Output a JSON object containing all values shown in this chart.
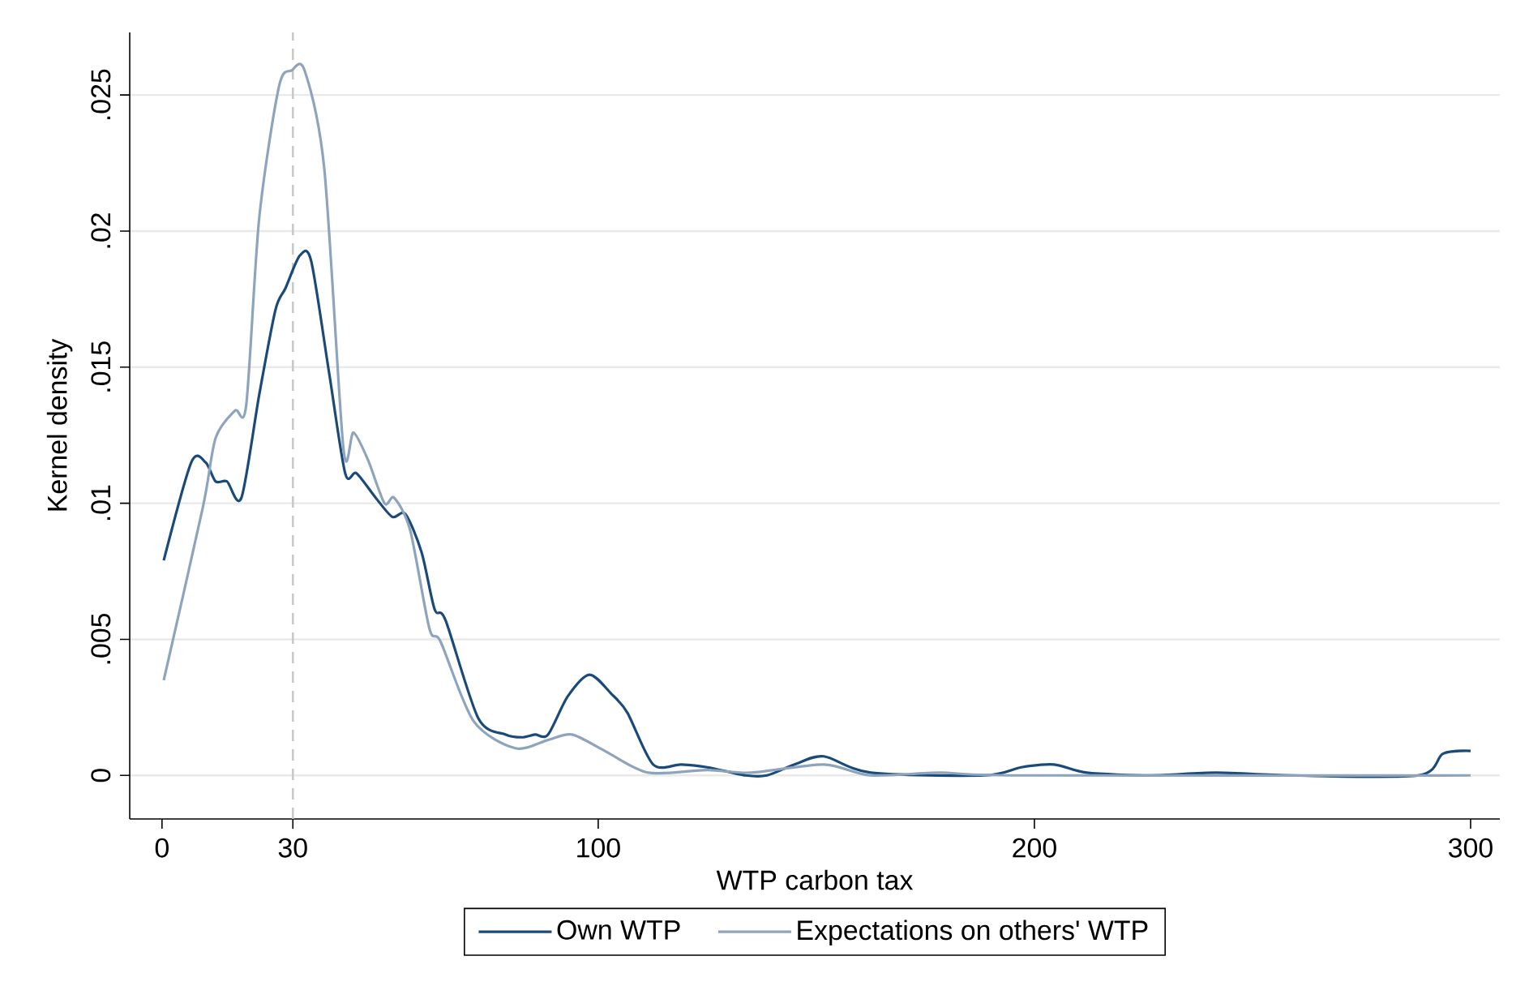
{
  "chart_data": {
    "type": "line",
    "xlabel": "WTP carbon tax",
    "ylabel": "Kernel density",
    "xlim": [
      -7.4,
      306.7
    ],
    "ylim": [
      -0.0016,
      0.0273
    ],
    "xticks": [
      0,
      30,
      100,
      200,
      300
    ],
    "yticks": [
      0,
      {
        "value": 0.005,
        "label": ".005"
      },
      {
        "value": 0.01,
        "label": ".01"
      },
      {
        "value": 0.015,
        "label": ".015"
      },
      {
        "value": 0.02,
        "label": ".02"
      },
      {
        "value": 0.025,
        "label": ".025"
      }
    ],
    "grid": "y",
    "legend": "bottom",
    "line_style": "solid",
    "marker": "none",
    "ref_lines": [
      {
        "axis": "x",
        "value": 30,
        "color": "#c8c8c8",
        "line_style": "dashed"
      }
    ],
    "series": [
      {
        "name": "Own WTP",
        "color": "#1a4a7a",
        "x": [
          0.4,
          6.7,
          10,
          12.3,
          14.9,
          18.2,
          22.3,
          26,
          28.3,
          31.6,
          34.2,
          38.3,
          42,
          44.6,
          49,
          52.8,
          55.8,
          59.5,
          62.5,
          65,
          72.5,
          78.8,
          82.5,
          85.5,
          88.5,
          93,
          98,
          103,
          106.7,
          112.6,
          119,
          125,
          133.8,
          138.7,
          145,
          151.7,
          162.5,
          188.5,
          197,
          204.5,
          212,
          226.8,
          241.6,
          259,
          288,
          293.7,
          300
        ],
        "values": [
          0.0079,
          0.0115,
          0.0115,
          0.0108,
          0.0108,
          0.0102,
          0.014,
          0.0171,
          0.0179,
          0.0191,
          0.0189,
          0.0148,
          0.0111,
          0.0111,
          0.0102,
          0.0095,
          0.0096,
          0.0082,
          0.0061,
          0.0057,
          0.0021,
          0.0015,
          0.0014,
          0.0015,
          0.0015,
          0.0029,
          0.0037,
          0.003,
          0.0023,
          0.0004,
          0.0004,
          0.0003,
          0,
          0,
          0.0004,
          0.0007,
          0.0001,
          0,
          0.0003,
          0.0004,
          0.0001,
          0,
          0.0001,
          0,
          0,
          0.0008,
          0.0009
        ]
      },
      {
        "name": "Expectations on others' WTP",
        "color": "#8ea4bd",
        "x": [
          0.4,
          9.3,
          12.3,
          16.7,
          19.3,
          22.3,
          26.8,
          29.7,
          32.7,
          37.2,
          41.6,
          43.9,
          47.2,
          51,
          53.2,
          56.9,
          61.3,
          63.9,
          71.4,
          81,
          88.5,
          94,
          101.5,
          111.5,
          125,
          135,
          151.7,
          162.5,
          178.4,
          197,
          300
        ],
        "values": [
          0.0035,
          0.0098,
          0.0124,
          0.0134,
          0.0136,
          0.0205,
          0.0253,
          0.0259,
          0.0259,
          0.0223,
          0.012,
          0.0126,
          0.0116,
          0.01,
          0.0102,
          0.009,
          0.0054,
          0.0049,
          0.002,
          0.001,
          0.0013,
          0.0015,
          0.0009,
          0.0001,
          0.0002,
          0.0001,
          0.0004,
          0,
          0.0001,
          0,
          0
        ]
      }
    ]
  }
}
